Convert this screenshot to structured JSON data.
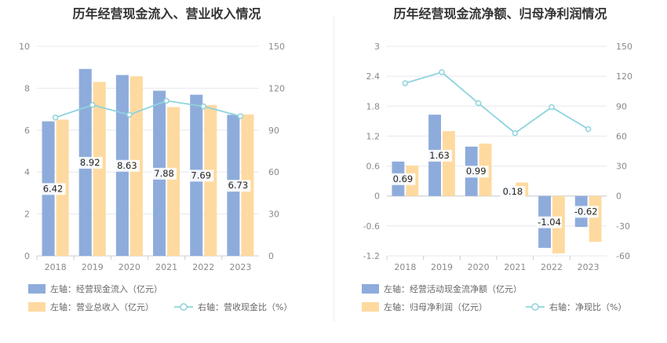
{
  "charts": [
    {
      "title": "历年经营现金流入、营业收入情况",
      "legend": [
        "左轴：经营现金流入（亿元）",
        "左轴：营业总收入（亿元）",
        "右轴：营收现金比（%）"
      ],
      "colors": {
        "bar1": "#8eacdb",
        "bar2": "#fedaa0",
        "line": "#8fd3de"
      }
    },
    {
      "title": "历年经营现金流净额、归母净利润情况",
      "legend": [
        "左轴：经营活动现金流净额（亿元）",
        "左轴：归母净利润（亿元）",
        "右轴：净现比（%）"
      ],
      "colors": {
        "bar1": "#8eacdb",
        "bar2": "#fedaa0",
        "line": "#8fd3de"
      }
    }
  ],
  "chart_data": [
    {
      "type": "bar",
      "title": "历年经营现金流入、营业收入情况",
      "categories": [
        "2018",
        "2019",
        "2020",
        "2021",
        "2022",
        "2023"
      ],
      "series": [
        {
          "name": "左轴：经营现金流入（亿元）",
          "axis": "left",
          "values": [
            6.42,
            8.92,
            8.63,
            7.88,
            7.69,
            6.73
          ],
          "labels": [
            "6.42",
            "8.92",
            "8.63",
            "7.88",
            "7.69",
            "6.73"
          ]
        },
        {
          "name": "左轴：营业总收入（亿元）",
          "axis": "left",
          "values": [
            6.5,
            8.3,
            8.57,
            7.1,
            7.2,
            6.75
          ]
        },
        {
          "name": "右轴：营收现金比（%）",
          "axis": "right",
          "type": "line",
          "values": [
            99,
            108,
            101,
            111,
            107,
            100
          ]
        }
      ],
      "ylim_left": [
        0,
        10
      ],
      "ylim_right": [
        0,
        150
      ],
      "yticks_left": [
        "0",
        "2",
        "4",
        "6",
        "8",
        "10"
      ],
      "yticks_right": [
        "0",
        "30",
        "60",
        "90",
        "120",
        "150"
      ],
      "grid": true,
      "legend_position": "bottom"
    },
    {
      "type": "bar",
      "title": "历年经营现金流净额、归母净利润情况",
      "categories": [
        "2018",
        "2019",
        "2020",
        "2021",
        "2022",
        "2023"
      ],
      "series": [
        {
          "name": "左轴：经营活动现金流净额（亿元）",
          "axis": "left",
          "values": [
            0.69,
            1.63,
            0.99,
            0.18,
            -1.04,
            -0.62
          ],
          "labels": [
            "0.69",
            "1.63",
            "0.99",
            "0.18",
            "-1.04",
            "-0.62"
          ]
        },
        {
          "name": "左轴：归母净利润（亿元）",
          "axis": "left",
          "values": [
            0.61,
            1.3,
            1.05,
            0.27,
            -1.15,
            -0.92
          ]
        },
        {
          "name": "右轴：净现比（%）",
          "axis": "right",
          "type": "line",
          "values": [
            113,
            124,
            93,
            63,
            89,
            67
          ]
        }
      ],
      "ylim_left": [
        -1.2,
        3
      ],
      "ylim_right": [
        -60,
        150
      ],
      "yticks_left": [
        "-1.2",
        "-0.6",
        "0",
        "0.6",
        "1.2",
        "1.8",
        "2.4",
        "3"
      ],
      "yticks_right": [
        "-60",
        "-30",
        "0",
        "30",
        "60",
        "90",
        "120",
        "150"
      ],
      "grid": true,
      "legend_position": "bottom"
    }
  ]
}
